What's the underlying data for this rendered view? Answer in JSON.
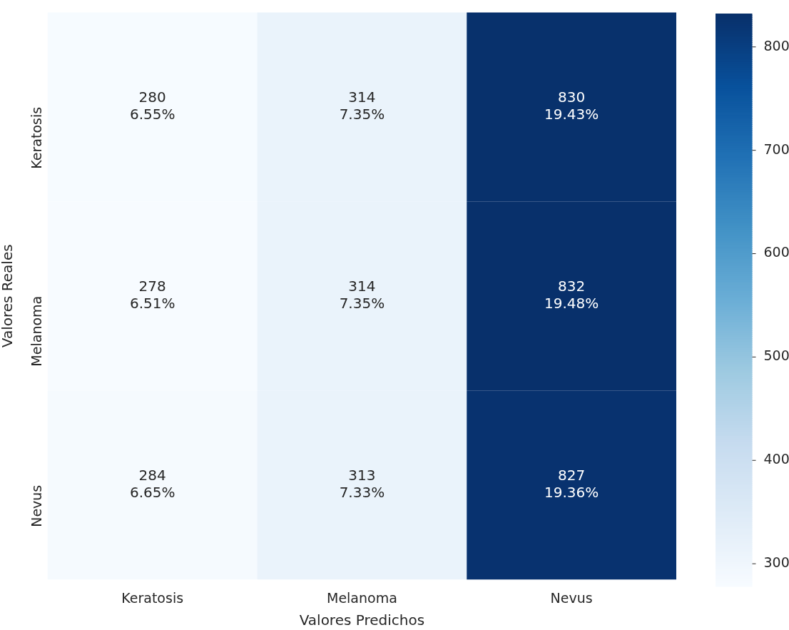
{
  "chart_data": {
    "type": "heatmap",
    "xlabel": "Valores Predichos",
    "ylabel": "Valores Reales",
    "categories": [
      "Keratosis",
      "Melanoma",
      "Nevus"
    ],
    "y_categories": [
      "Keratosis",
      "Melanoma",
      "Nevus"
    ],
    "cells": [
      [
        280,
        314,
        830
      ],
      [
        278,
        314,
        832
      ],
      [
        284,
        313,
        827
      ]
    ],
    "cell_labels": [
      [
        "280\n6.55%",
        "314\n7.35%",
        "830\n19.43%"
      ],
      [
        "278\n6.51%",
        "314\n7.35%",
        "832\n19.48%"
      ],
      [
        "284\n6.65%",
        "313\n7.33%",
        "827\n19.36%"
      ]
    ],
    "clim": [
      278,
      832
    ],
    "cticks": [
      300,
      400,
      500,
      600,
      700,
      800
    ]
  }
}
